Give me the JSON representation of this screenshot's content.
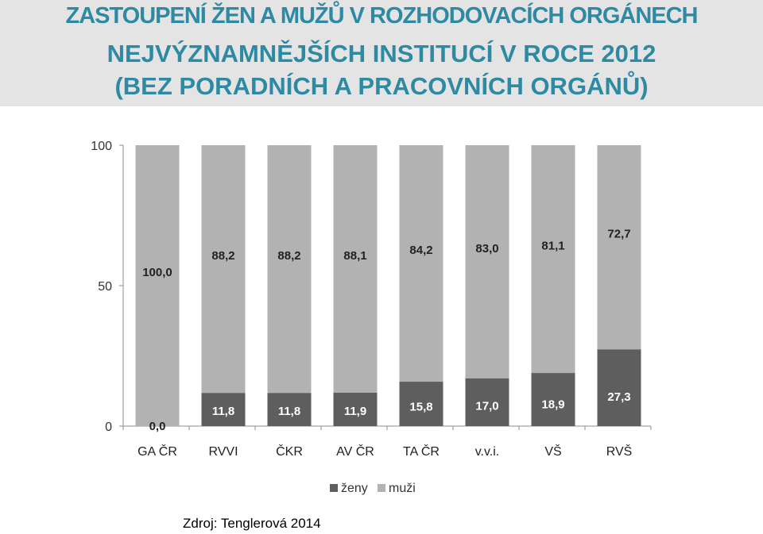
{
  "title": {
    "line1": "ZASTOUPENÍ ŽEN A MUŽŮ V ROZHODOVACÍCH ORGÁNECH",
    "line2": "NEJVÝZNAMNĚJŠÍCH INSTITUCÍ V ROCE 2012",
    "line3": "(BEZ PORADNÍCH A PRACOVNÍCH ORGÁNŮ)"
  },
  "source": "Zdroj: Tenglerová 2014",
  "colors": {
    "zeny": "#5e5e5e",
    "muzi": "#b2b2b2",
    "title": "#2e8aa3"
  },
  "chart_data": {
    "type": "bar",
    "stacked": true,
    "categories": [
      "GA ČR",
      "RVVI",
      "ČKR",
      "AV ČR",
      "TA ČR",
      "v.v.i.",
      "VŠ",
      "RVŠ"
    ],
    "series": [
      {
        "name": "ženy",
        "values": [
          0.0,
          11.8,
          11.8,
          11.9,
          15.8,
          17.0,
          18.9,
          27.3
        ],
        "labels": [
          "0,0",
          "11,8",
          "11,8",
          "11,9",
          "15,8",
          "17,0",
          "18,9",
          "27,3"
        ]
      },
      {
        "name": "muži",
        "values": [
          100.0,
          88.2,
          88.2,
          88.1,
          84.2,
          83.0,
          81.1,
          72.7
        ],
        "labels": [
          "100,0",
          "88,2",
          "88,2",
          "88,1",
          "84,2",
          "83,0",
          "81,1",
          "72,7"
        ]
      }
    ],
    "ylim": [
      0,
      100
    ],
    "yticks": [
      0,
      50,
      100
    ],
    "grid": false,
    "legend": "bottom"
  }
}
